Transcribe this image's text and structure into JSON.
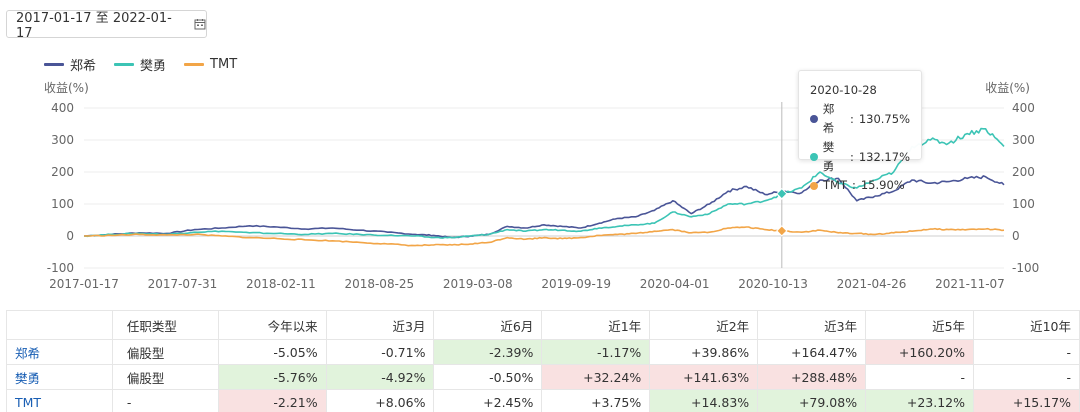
{
  "date_range": {
    "label": "2017-01-17 至 2022-01-17",
    "icon": "calendar-icon"
  },
  "colors": {
    "zhengxi": "#4a5597",
    "fanyong": "#3cc4b5",
    "tmt": "#f2a547",
    "positive_bg": "#f9e1e1",
    "negative_bg": "#e1f3dc",
    "link": "#1a5fb4"
  },
  "legend": [
    "郑希",
    "樊勇",
    "TMT"
  ],
  "chart_data": {
    "type": "line",
    "ylabel_left": "收益(%)",
    "ylabel_right": "收益(%)",
    "ylim": [
      -100,
      400
    ],
    "yticks": [
      400,
      300,
      200,
      100,
      0,
      -100
    ],
    "x_tick_labels": [
      "2017-01-17",
      "2017-07-31",
      "2018-02-11",
      "2018-08-25",
      "2019-03-08",
      "2019-09-19",
      "2020-04-01",
      "2020-10-13",
      "2021-04-26",
      "2021-11-07"
    ],
    "grid": true,
    "legend_position": "top-left",
    "series": [
      {
        "name": "郑希",
        "color": "#4a5597",
        "x": [
          0,
          0.03,
          0.06,
          0.09,
          0.12,
          0.15,
          0.18,
          0.21,
          0.24,
          0.27,
          0.3,
          0.33,
          0.36,
          0.38,
          0.4,
          0.42,
          0.44,
          0.46,
          0.48,
          0.5,
          0.52,
          0.54,
          0.56,
          0.58,
          0.6,
          0.62,
          0.64,
          0.66,
          0.68,
          0.7,
          0.72,
          0.74,
          0.76,
          0.78,
          0.8,
          0.82,
          0.84,
          0.86,
          0.88,
          0.9,
          0.92,
          0.94,
          0.96,
          0.98,
          1.0
        ],
        "y": [
          0,
          5,
          10,
          8,
          20,
          25,
          32,
          28,
          22,
          25,
          18,
          12,
          5,
          2,
          -5,
          0,
          5,
          30,
          25,
          35,
          30,
          25,
          40,
          55,
          60,
          80,
          110,
          70,
          100,
          140,
          155,
          130,
          140,
          135,
          175,
          180,
          110,
          125,
          140,
          175,
          165,
          170,
          180,
          185,
          160
        ]
      },
      {
        "name": "樊勇",
        "color": "#3cc4b5",
        "x": [
          0,
          0.03,
          0.06,
          0.09,
          0.12,
          0.15,
          0.18,
          0.21,
          0.24,
          0.27,
          0.3,
          0.33,
          0.36,
          0.38,
          0.4,
          0.42,
          0.44,
          0.46,
          0.48,
          0.5,
          0.52,
          0.54,
          0.56,
          0.58,
          0.6,
          0.62,
          0.64,
          0.66,
          0.68,
          0.7,
          0.72,
          0.74,
          0.76,
          0.78,
          0.8,
          0.82,
          0.84,
          0.86,
          0.88,
          0.9,
          0.92,
          0.94,
          0.96,
          0.98,
          1.0
        ],
        "y": [
          0,
          5,
          8,
          5,
          12,
          15,
          10,
          8,
          5,
          8,
          5,
          2,
          0,
          -5,
          -5,
          0,
          5,
          20,
          15,
          20,
          18,
          15,
          25,
          30,
          35,
          40,
          75,
          60,
          70,
          100,
          100,
          110,
          132,
          150,
          200,
          165,
          150,
          175,
          200,
          280,
          300,
          290,
          320,
          335,
          280
        ]
      },
      {
        "name": "TMT",
        "color": "#f2a547",
        "x": [
          0,
          0.03,
          0.06,
          0.09,
          0.12,
          0.15,
          0.18,
          0.21,
          0.24,
          0.27,
          0.3,
          0.33,
          0.36,
          0.38,
          0.4,
          0.42,
          0.44,
          0.46,
          0.48,
          0.5,
          0.52,
          0.54,
          0.56,
          0.58,
          0.6,
          0.62,
          0.64,
          0.66,
          0.68,
          0.7,
          0.72,
          0.74,
          0.76,
          0.78,
          0.8,
          0.82,
          0.84,
          0.86,
          0.88,
          0.9,
          0.92,
          0.94,
          0.96,
          0.98,
          1.0
        ],
        "y": [
          0,
          2,
          5,
          3,
          5,
          0,
          -5,
          -8,
          -12,
          -15,
          -20,
          -25,
          -30,
          -28,
          -28,
          -25,
          -20,
          -5,
          -10,
          -5,
          -8,
          -5,
          2,
          5,
          8,
          15,
          20,
          10,
          12,
          25,
          28,
          20,
          16,
          12,
          18,
          10,
          8,
          5,
          10,
          15,
          22,
          20,
          20,
          22,
          18
        ]
      }
    ],
    "tooltip": {
      "date": "2020-10-28",
      "x": 0.7585,
      "rows": [
        {
          "name": "郑希",
          "value": "130.75%",
          "y": 130.75
        },
        {
          "name": "樊勇",
          "value": "132.17%",
          "y": 132.17
        },
        {
          "name": "TMT",
          "value": "15.90%",
          "y": 15.9
        }
      ]
    }
  },
  "table": {
    "headers": [
      "",
      "任职类型",
      "今年以来",
      "近3月",
      "近6月",
      "近1年",
      "近2年",
      "近3年",
      "近5年",
      "近10年"
    ],
    "rows": [
      {
        "name": "郑希",
        "type": "偏股型",
        "values": [
          "-5.05%",
          "-0.71%",
          "-2.39%",
          "-1.17%",
          "+39.86%",
          "+164.47%",
          "+160.20%",
          "-"
        ],
        "styles": [
          "",
          "",
          "neg",
          "neg",
          "",
          "",
          "pos",
          ""
        ]
      },
      {
        "name": "樊勇",
        "type": "偏股型",
        "values": [
          "-5.76%",
          "-4.92%",
          "-0.50%",
          "+32.24%",
          "+141.63%",
          "+288.48%",
          "-",
          "-"
        ],
        "styles": [
          "neg",
          "neg",
          "",
          "pos",
          "pos",
          "pos",
          "",
          ""
        ]
      },
      {
        "name": "TMT",
        "type": "-",
        "values": [
          "-2.21%",
          "+8.06%",
          "+2.45%",
          "+3.75%",
          "+14.83%",
          "+79.08%",
          "+23.12%",
          "+15.17%"
        ],
        "styles": [
          "pos",
          "",
          "",
          "",
          "neg",
          "neg",
          "neg",
          "pos"
        ]
      }
    ]
  }
}
